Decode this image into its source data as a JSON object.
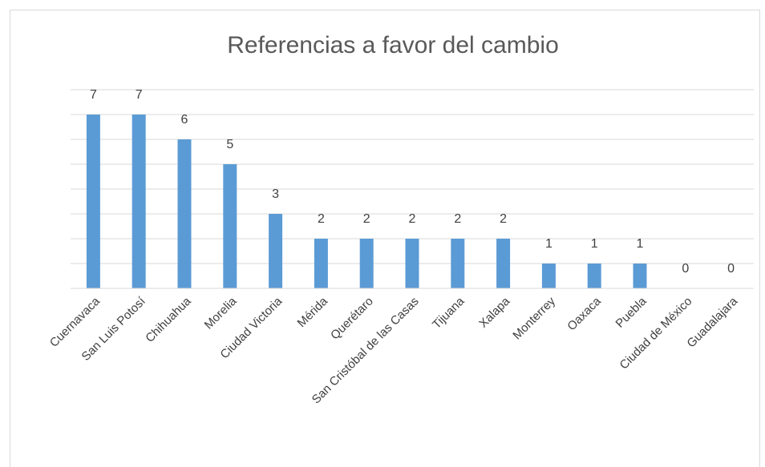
{
  "chart_data": {
    "type": "bar",
    "title": "Referencias a favor del cambio",
    "categories": [
      "Cuernavaca",
      "San Luis Potosí",
      "Chihuahua",
      "Morelia",
      "Ciudad Victoria",
      "Mérida",
      "Querétaro",
      "San Cristóbal de las Casas",
      "Tijuana",
      "Xalapa",
      "Monterrey",
      "Oaxaca",
      "Puebla",
      "Ciudad de México",
      "Guadalajara"
    ],
    "values": [
      7,
      7,
      6,
      5,
      3,
      2,
      2,
      2,
      2,
      2,
      1,
      1,
      1,
      0,
      0
    ],
    "color": "#5b9bd5",
    "ylim": [
      0,
      8
    ],
    "yticks": [
      0,
      1,
      2,
      3,
      4,
      5,
      6,
      7,
      8
    ],
    "grid": true
  }
}
